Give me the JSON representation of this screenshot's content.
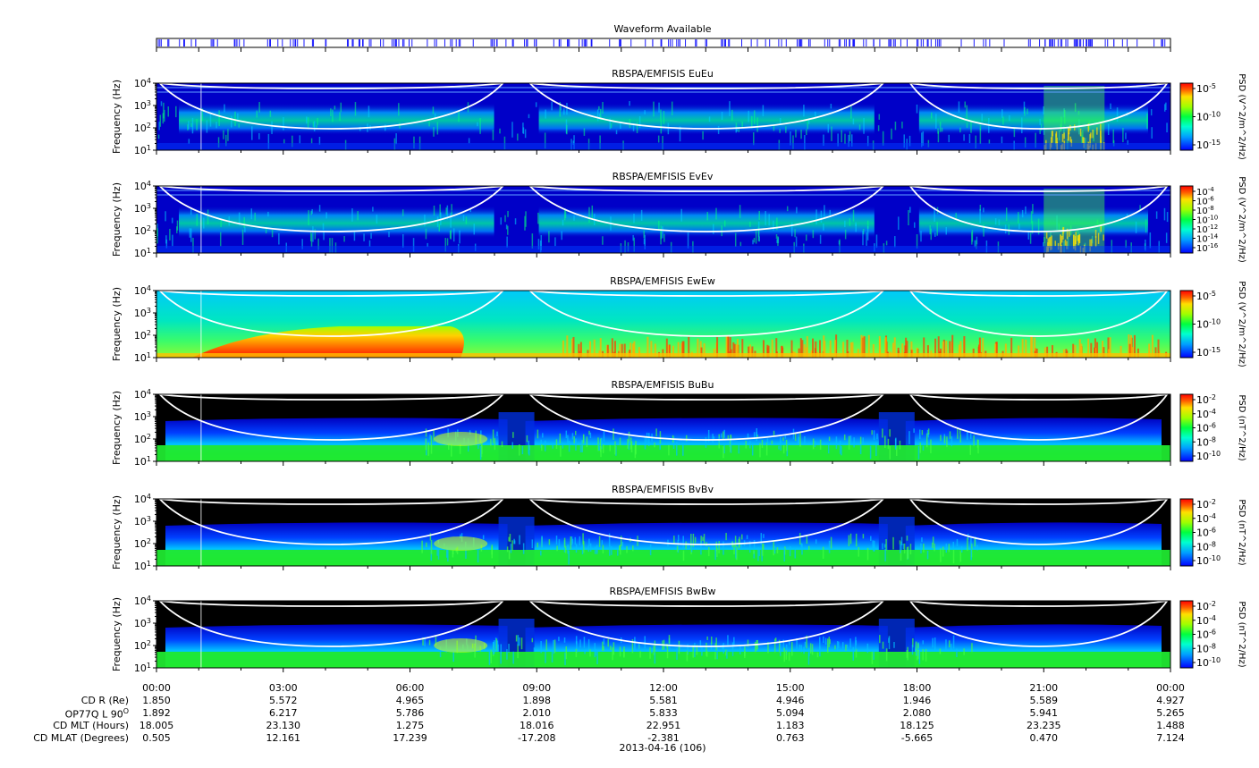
{
  "waveform_bar": {
    "title": "Waveform Available",
    "color": "#1a1aff"
  },
  "chart_data": [
    {
      "type": "heatmap",
      "title": "RBSPA/EMFISIS  EuEu",
      "ylabel": "Frequency (Hz)",
      "yscale": "log",
      "ylim": [
        10,
        10000
      ],
      "yticks": [
        "10^1",
        "10^2",
        "10^3",
        "10^4"
      ],
      "colorbar_label": "PSD (V^2/m^2/Hz)",
      "colorbar_ticks": [
        "10^-5",
        "10^-10",
        "10^-15"
      ],
      "background": "#0000c8",
      "style": "E"
    },
    {
      "type": "heatmap",
      "title": "RBSPA/EMFISIS  EvEv",
      "ylabel": "Frequency (Hz)",
      "yscale": "log",
      "ylim": [
        10,
        10000
      ],
      "yticks": [
        "10^1",
        "10^2",
        "10^3",
        "10^4"
      ],
      "colorbar_label": "PSD (V^2/m^2/Hz)",
      "colorbar_ticks": [
        "10^-4",
        "10^-6",
        "10^-8",
        "10^-10",
        "10^-12",
        "10^-14",
        "10^-16"
      ],
      "background": "#0000c8",
      "style": "E"
    },
    {
      "type": "heatmap",
      "title": "RBSPA/EMFISIS  EwEw",
      "ylabel": "Frequency (Hz)",
      "yscale": "log",
      "ylim": [
        10,
        10000
      ],
      "yticks": [
        "10^1",
        "10^2",
        "10^3",
        "10^4"
      ],
      "colorbar_label": "PSD (V^2/m^2/Hz)",
      "colorbar_ticks": [
        "10^-5",
        "10^-10",
        "10^-15"
      ],
      "background": "#00d8c8",
      "style": "EW"
    },
    {
      "type": "heatmap",
      "title": "RBSPA/EMFISIS  BuBu",
      "ylabel": "Frequency (Hz)",
      "yscale": "log",
      "ylim": [
        10,
        10000
      ],
      "yticks": [
        "10^1",
        "10^2",
        "10^3",
        "10^4"
      ],
      "colorbar_label": "PSD (nT^2/Hz)",
      "colorbar_ticks": [
        "10^-2",
        "10^-4",
        "10^-6",
        "10^-8",
        "10^-10"
      ],
      "background": "#000000",
      "style": "B"
    },
    {
      "type": "heatmap",
      "title": "RBSPA/EMFISIS  BvBv",
      "ylabel": "Frequency (Hz)",
      "yscale": "log",
      "ylim": [
        10,
        10000
      ],
      "yticks": [
        "10^1",
        "10^2",
        "10^3",
        "10^4"
      ],
      "colorbar_label": "PSD (nT^2/Hz)",
      "colorbar_ticks": [
        "10^-2",
        "10^-4",
        "10^-6",
        "10^-8",
        "10^-10"
      ],
      "background": "#000000",
      "style": "B"
    },
    {
      "type": "heatmap",
      "title": "RBSPA/EMFISIS  BwBw",
      "ylabel": "Frequency (Hz)",
      "yscale": "log",
      "ylim": [
        10,
        10000
      ],
      "yticks": [
        "10^1",
        "10^2",
        "10^3",
        "10^4"
      ],
      "colorbar_label": "PSD (nT^2/Hz)",
      "colorbar_ticks": [
        "10^-2",
        "10^-4",
        "10^-6",
        "10^-8",
        "10^-10"
      ],
      "background": "#000000",
      "style": "B"
    }
  ],
  "time_axis": {
    "tick_labels": [
      "00:00",
      "03:00",
      "06:00",
      "09:00",
      "12:00",
      "15:00",
      "18:00",
      "21:00",
      "00:00"
    ],
    "xlabel": "2013-04-16 (106)"
  },
  "ephemeris": {
    "rows": [
      {
        "label": "CD R (Re)",
        "values": [
          "1.850",
          "5.572",
          "4.965",
          "1.898",
          "5.581",
          "4.946",
          "1.946",
          "5.589",
          "4.927"
        ]
      },
      {
        "label": "OP77Q L 90",
        "label_sup": "O",
        "values": [
          "1.892",
          "6.217",
          "5.786",
          "2.010",
          "5.833",
          "5.094",
          "2.080",
          "5.941",
          "5.265"
        ]
      },
      {
        "label": "CD MLT (Hours)",
        "values": [
          "18.005",
          "23.130",
          "1.275",
          "18.016",
          "22.951",
          "1.183",
          "18.125",
          "23.235",
          "1.488"
        ]
      },
      {
        "label": "CD MLAT (Degrees)",
        "values": [
          "0.505",
          "12.161",
          "17.239",
          "-17.208",
          "-2.381",
          "0.763",
          "-5.665",
          "0.470",
          "7.124"
        ]
      }
    ]
  }
}
